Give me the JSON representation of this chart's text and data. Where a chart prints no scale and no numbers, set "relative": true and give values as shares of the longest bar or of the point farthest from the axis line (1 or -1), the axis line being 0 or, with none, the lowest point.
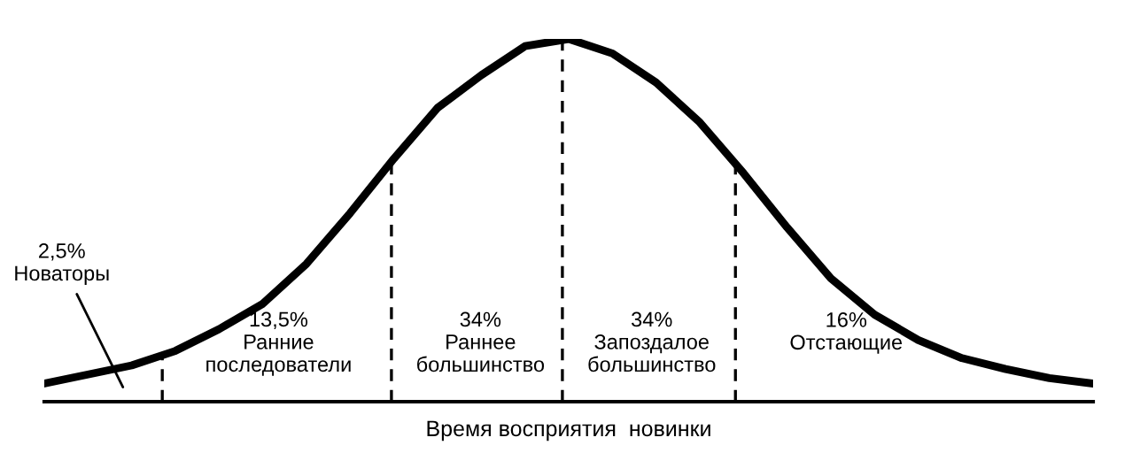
{
  "chart_data": {
    "type": "line",
    "relative": true,
    "xlabel": "Время восприятия  новинки",
    "categories": [
      null,
      null,
      null,
      null,
      null,
      null,
      null,
      null,
      null,
      null,
      null,
      null,
      null,
      null,
      null,
      null,
      null,
      null,
      null,
      null,
      null,
      null,
      null,
      null,
      null
    ],
    "series": [
      {
        "color": "#000000",
        "values": [
          0.05,
          0.075,
          0.1,
          0.14,
          0.2,
          0.27,
          0.38,
          0.52,
          0.67,
          0.81,
          0.9,
          0.98,
          1,
          0.96,
          0.88,
          0.77,
          0.63,
          0.48,
          0.34,
          0.24,
          0.17,
          0.12,
          0.09,
          0.065,
          0.05
        ]
      }
    ],
    "legend": false,
    "marker": "none",
    "line_style": "solid",
    "annotations": [
      "2,5%\nНоваторы",
      "13,5%\nРанние\nпоследователи",
      "34%\nРаннее\nбольшинство",
      "34%\nЗапоздалое\nбольшинство",
      "16%\nОтстающие"
    ]
  }
}
